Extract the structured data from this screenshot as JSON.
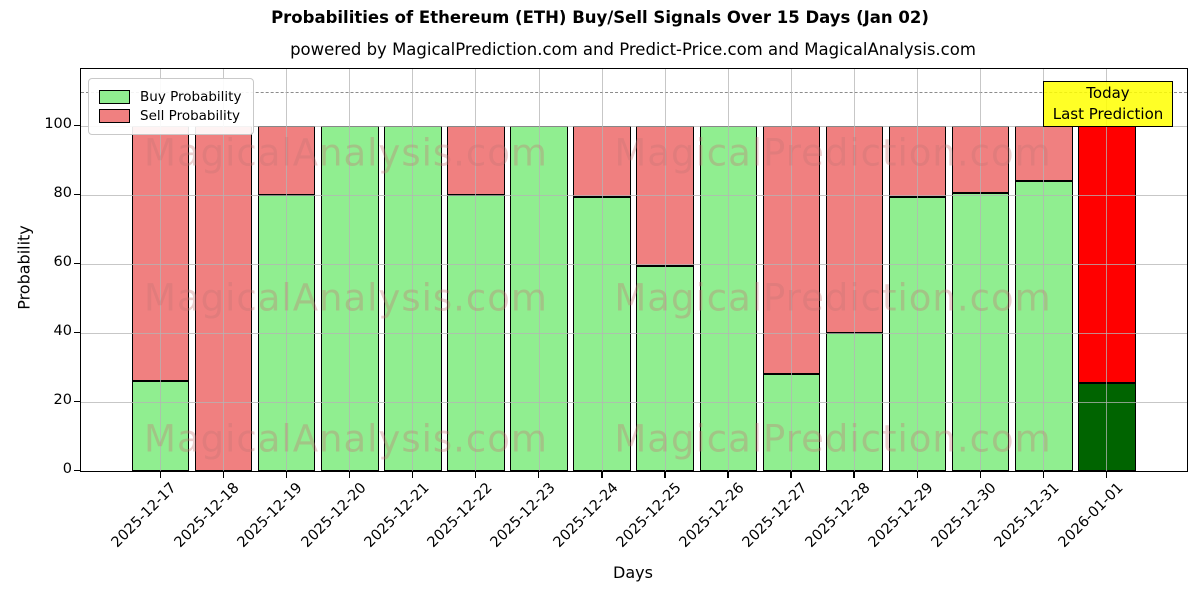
{
  "title": "Probabilities of Ethereum (ETH) Buy/Sell Signals Over 15 Days (Jan 02)",
  "subtitle": "powered by MagicalPrediction.com and Predict-Price.com and MagicalAnalysis.com",
  "annotation": {
    "line1": "Today",
    "line2": "Last Prediction"
  },
  "watermarks": {
    "left_text": "MagicalAnalysis.com",
    "right_text": "MagicalPrediction.com"
  },
  "legend": {
    "items": [
      {
        "label": "Buy Probability",
        "color": "#90ee90"
      },
      {
        "label": "Sell Probability",
        "color": "#f08080"
      }
    ]
  },
  "colors": {
    "buy": "#90ee90",
    "sell": "#f08080",
    "buy_today": "#006400",
    "sell_today": "#ff0000",
    "bar_edge": "#000000",
    "grid": "#b4b4b4",
    "dashed_line": "#8c8c8c",
    "annotation_bg": "#ffff00"
  },
  "chart_data": {
    "type": "bar",
    "stacked": true,
    "title": "Probabilities of Ethereum (ETH) Buy/Sell Signals Over 15 Days (Jan 02)",
    "xlabel": "Days",
    "ylabel": "Probability",
    "categories": [
      "2025-12-17",
      "2025-12-18",
      "2025-12-19",
      "2025-12-20",
      "2025-12-21",
      "2025-12-22",
      "2025-12-23",
      "2025-12-24",
      "2025-12-25",
      "2025-12-26",
      "2025-12-27",
      "2025-12-28",
      "2025-12-29",
      "2025-12-30",
      "2025-12-31",
      "2026-01-01"
    ],
    "series": [
      {
        "name": "Buy Probability",
        "color": "#90ee90",
        "values": [
          26,
          0,
          80,
          100,
          100,
          80,
          100,
          79.5,
          59.5,
          100,
          28,
          40,
          79.5,
          80.5,
          84,
          25.5
        ]
      },
      {
        "name": "Sell Probability",
        "color": "#f08080",
        "values": [
          74,
          100,
          20,
          0,
          0,
          20,
          0,
          20.5,
          40.5,
          0,
          72,
          60,
          20.5,
          19.5,
          16,
          74.5
        ]
      }
    ],
    "today_bar_index": 15,
    "today_bar_colors": {
      "buy": "#006400",
      "sell": "#ff0000"
    },
    "yticks": [
      0,
      20,
      40,
      60,
      80,
      100
    ],
    "ylim": [
      0,
      116.5
    ],
    "dashed_line_y": 110,
    "grid": true,
    "legend_position": "upper left"
  }
}
